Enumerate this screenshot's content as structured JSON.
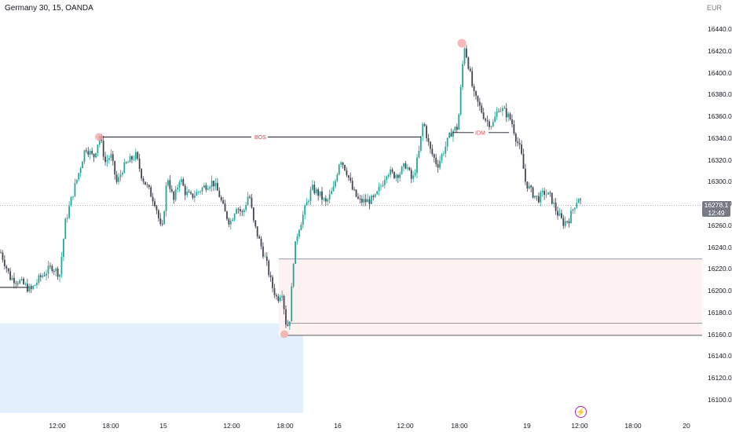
{
  "header": {
    "title": "Germany 30, 15, OANDA",
    "currency": "EUR"
  },
  "price_axis": {
    "ticks": [
      "16440.0",
      "16420.0",
      "16400.0",
      "16380.0",
      "16360.0",
      "16340.0",
      "16320.0",
      "16300.0",
      "16280.0",
      "16260.0",
      "16240.0",
      "16220.0",
      "16200.0",
      "16180.0",
      "16160.0",
      "16140.0",
      "16120.0",
      "16100.0"
    ]
  },
  "time_axis": {
    "ticks": [
      "12:00",
      "18:00",
      "15",
      "12:00",
      "18:00",
      "16",
      "12:00",
      "18:00",
      "19",
      "12:00",
      "18:00",
      "20"
    ]
  },
  "last_price": {
    "value": "16278.1",
    "countdown": "12:49"
  },
  "annotations": {
    "bos": "BOS",
    "idm": "IDM"
  },
  "colors": {
    "up": "#26a69a",
    "down": "#434651",
    "demand_zone": "#e3effc",
    "supply_zone": "#fdf1f1",
    "marker": "#f4a6a6",
    "label": "#f23645",
    "indicator": "#9c27b0"
  },
  "indicator_icon": "lightning-icon",
  "chart_data": {
    "type": "candlestick",
    "symbol": "Germany 30",
    "timeframe": "15",
    "broker": "OANDA",
    "ylim": [
      16090,
      16450
    ],
    "x_labels": [
      "12:00",
      "18:00",
      "15",
      "12:00",
      "18:00",
      "16",
      "12:00",
      "18:00",
      "19",
      "12:00",
      "18:00",
      "20"
    ],
    "close_path": [
      [
        0,
        16235
      ],
      [
        12,
        16212
      ],
      [
        25,
        16208
      ],
      [
        38,
        16200
      ],
      [
        50,
        16212
      ],
      [
        65,
        16222
      ],
      [
        75,
        16215
      ],
      [
        82,
        16262
      ],
      [
        92,
        16290
      ],
      [
        100,
        16310
      ],
      [
        108,
        16332
      ],
      [
        118,
        16322
      ],
      [
        126,
        16342
      ],
      [
        133,
        16318
      ],
      [
        140,
        16324
      ],
      [
        148,
        16298
      ],
      [
        155,
        16312
      ],
      [
        165,
        16320
      ],
      [
        172,
        16324
      ],
      [
        180,
        16304
      ],
      [
        190,
        16290
      ],
      [
        197,
        16280
      ],
      [
        205,
        16252
      ],
      [
        212,
        16306
      ],
      [
        220,
        16282
      ],
      [
        228,
        16304
      ],
      [
        235,
        16290
      ],
      [
        242,
        16286
      ],
      [
        250,
        16290
      ],
      [
        260,
        16296
      ],
      [
        270,
        16300
      ],
      [
        278,
        16288
      ],
      [
        285,
        16272
      ],
      [
        292,
        16262
      ],
      [
        300,
        16278
      ],
      [
        308,
        16270
      ],
      [
        316,
        16290
      ],
      [
        322,
        16262
      ],
      [
        330,
        16244
      ],
      [
        338,
        16226
      ],
      [
        345,
        16205
      ],
      [
        352,
        16192
      ],
      [
        358,
        16200
      ],
      [
        364,
        16165
      ],
      [
        368,
        16175
      ],
      [
        373,
        16232
      ],
      [
        378,
        16254
      ],
      [
        386,
        16272
      ],
      [
        396,
        16294
      ],
      [
        406,
        16288
      ],
      [
        414,
        16280
      ],
      [
        424,
        16294
      ],
      [
        432,
        16322
      ],
      [
        440,
        16310
      ],
      [
        448,
        16292
      ],
      [
        456,
        16282
      ],
      [
        466,
        16282
      ],
      [
        476,
        16284
      ],
      [
        484,
        16296
      ],
      [
        492,
        16310
      ],
      [
        500,
        16306
      ],
      [
        508,
        16308
      ],
      [
        516,
        16316
      ],
      [
        524,
        16300
      ],
      [
        532,
        16325
      ],
      [
        538,
        16356
      ],
      [
        546,
        16330
      ],
      [
        556,
        16315
      ],
      [
        566,
        16332
      ],
      [
        574,
        16346
      ],
      [
        582,
        16350
      ],
      [
        590,
        16426
      ],
      [
        596,
        16405
      ],
      [
        602,
        16380
      ],
      [
        610,
        16368
      ],
      [
        618,
        16356
      ],
      [
        626,
        16352
      ],
      [
        634,
        16368
      ],
      [
        642,
        16364
      ],
      [
        650,
        16356
      ],
      [
        656,
        16340
      ],
      [
        662,
        16328
      ],
      [
        668,
        16300
      ],
      [
        676,
        16290
      ],
      [
        684,
        16284
      ],
      [
        692,
        16290
      ],
      [
        700,
        16286
      ],
      [
        708,
        16272
      ],
      [
        716,
        16262
      ],
      [
        724,
        16266
      ],
      [
        730,
        16278
      ],
      [
        736,
        16286
      ],
      [
        740,
        16278
      ]
    ],
    "series": [
      {
        "name": "BOS",
        "type": "horizontal_line",
        "y": 16341,
        "x_from": 126,
        "x_to": 536
      },
      {
        "name": "IDM",
        "type": "horizontal_line",
        "y": 16345,
        "x_from": 576,
        "x_to": 648
      }
    ],
    "zones": [
      {
        "kind": "demand",
        "y_from": 16170,
        "y_to": 16090
      },
      {
        "kind": "supply",
        "y_from": 16229,
        "y_to": 16159
      }
    ],
    "last_price": 16278.1
  }
}
